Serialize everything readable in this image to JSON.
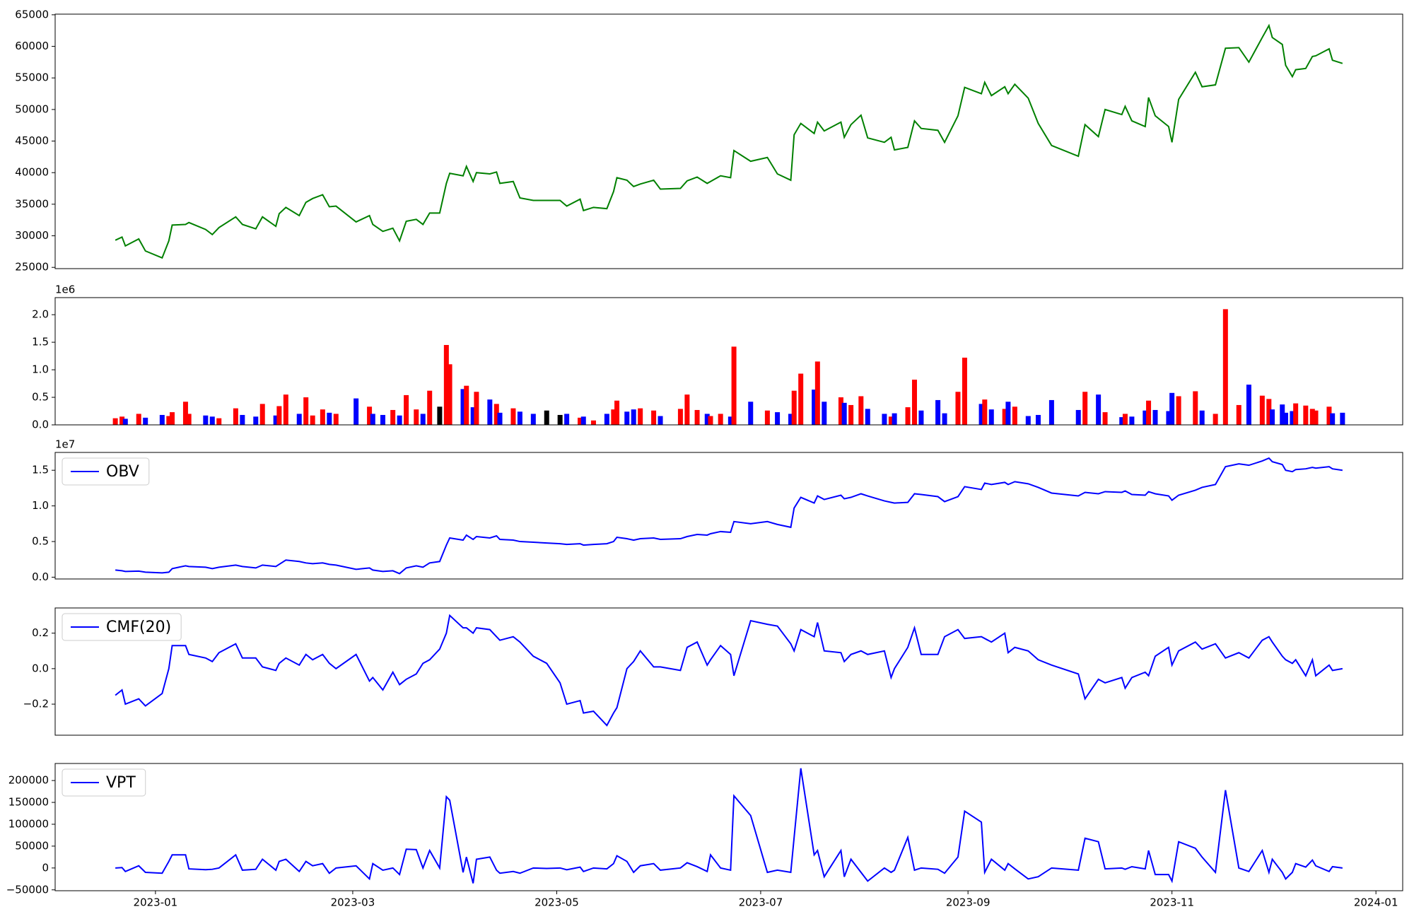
{
  "chart_data": [
    {
      "type": "line",
      "x": [
        "2022-12-20",
        "2022-12-22",
        "2022-12-23",
        "2022-12-27",
        "2022-12-29",
        "2023-01-03",
        "2023-01-05",
        "2023-01-06",
        "2023-01-10",
        "2023-01-11",
        "2023-01-16",
        "2023-01-18",
        "2023-01-20",
        "2023-01-25",
        "2023-01-27",
        "2023-01-31",
        "2023-02-02",
        "2023-02-06",
        "2023-02-07",
        "2023-02-09",
        "2023-02-13",
        "2023-02-15",
        "2023-02-17",
        "2023-02-20",
        "2023-02-22",
        "2023-02-24",
        "2023-03-02",
        "2023-03-06",
        "2023-03-07",
        "2023-03-10",
        "2023-03-13",
        "2023-03-15",
        "2023-03-17",
        "2023-03-20",
        "2023-03-22",
        "2023-03-24",
        "2023-03-27",
        "2023-03-29",
        "2023-03-30",
        "2023-04-03",
        "2023-04-04",
        "2023-04-06",
        "2023-04-07",
        "2023-04-11",
        "2023-04-13",
        "2023-04-14",
        "2023-04-18",
        "2023-04-20",
        "2023-04-24",
        "2023-04-28",
        "2023-05-02",
        "2023-05-04",
        "2023-05-08",
        "2023-05-09",
        "2023-05-12",
        "2023-05-16",
        "2023-05-18",
        "2023-05-19",
        "2023-05-22",
        "2023-05-24",
        "2023-05-26",
        "2023-05-30",
        "2023-06-01",
        "2023-06-07",
        "2023-06-09",
        "2023-06-12",
        "2023-06-15",
        "2023-06-16",
        "2023-06-19",
        "2023-06-22",
        "2023-06-23",
        "2023-06-28",
        "2023-07-03",
        "2023-07-06",
        "2023-07-10",
        "2023-07-11",
        "2023-07-13",
        "2023-07-17",
        "2023-07-18",
        "2023-07-20",
        "2023-07-25",
        "2023-07-26",
        "2023-07-28",
        "2023-07-31",
        "2023-08-02",
        "2023-08-07",
        "2023-08-09",
        "2023-08-10",
        "2023-08-14",
        "2023-08-16",
        "2023-08-18",
        "2023-08-23",
        "2023-08-25",
        "2023-08-29",
        "2023-08-31",
        "2023-09-05",
        "2023-09-06",
        "2023-09-08",
        "2023-09-12",
        "2023-09-13",
        "2023-09-15",
        "2023-09-19",
        "2023-09-22",
        "2023-09-26",
        "2023-10-04",
        "2023-10-06",
        "2023-10-10",
        "2023-10-12",
        "2023-10-17",
        "2023-10-18",
        "2023-10-20",
        "2023-10-24",
        "2023-10-25",
        "2023-10-27",
        "2023-10-31",
        "2023-11-01",
        "2023-11-03",
        "2023-11-08",
        "2023-11-10",
        "2023-11-14",
        "2023-11-17",
        "2023-11-21",
        "2023-11-24",
        "2023-11-28",
        "2023-11-30",
        "2023-12-01",
        "2023-12-04",
        "2023-12-05",
        "2023-12-07",
        "2023-12-08",
        "2023-12-11",
        "2023-12-13",
        "2023-12-14",
        "2023-12-18",
        "2023-12-19",
        "2023-12-22"
      ],
      "xlim": [
        "2022-12-02",
        "2024-01-09"
      ],
      "series": [
        {
          "color": "#008000",
          "values": [
            29300,
            29800,
            28400,
            29500,
            27600,
            26500,
            29200,
            31700,
            31800,
            32100,
            31000,
            30200,
            31300,
            33000,
            31800,
            31100,
            33000,
            31500,
            33500,
            34500,
            33200,
            35300,
            35900,
            36500,
            34600,
            34700,
            32200,
            33200,
            31800,
            30700,
            31200,
            29200,
            32300,
            32600,
            31800,
            33600,
            33600,
            38300,
            39900,
            39500,
            41000,
            38600,
            40000,
            39800,
            40100,
            38300,
            38600,
            36000,
            35600,
            35600,
            35600,
            34700,
            35800,
            34000,
            34500,
            34300,
            37000,
            39200,
            38800,
            37800,
            38200,
            38800,
            37400,
            37500,
            38700,
            39300,
            38300,
            38600,
            39500,
            39200,
            43500,
            41800,
            42400,
            39800,
            38800,
            46000,
            47800,
            46200,
            48000,
            46600,
            48000,
            45600,
            47600,
            49100,
            45500,
            44800,
            45600,
            43600,
            44000,
            48200,
            47000,
            46700,
            44800,
            49000,
            53500,
            52500,
            54300,
            52200,
            53600,
            52500,
            54000,
            51800,
            47800,
            44300,
            42600,
            47600,
            45700,
            50000,
            49200,
            50500,
            48200,
            47300,
            51900,
            49000,
            47300,
            44800,
            51600,
            55900,
            53600,
            53900,
            59700,
            59800,
            57500,
            61400,
            63300,
            61400,
            60300,
            57000,
            55200,
            56300,
            56500,
            58400,
            58500,
            59600,
            57800,
            57300
          ]
        }
      ],
      "ylim": [
        24800,
        65100
      ],
      "yticks": [
        25000,
        30000,
        35000,
        40000,
        45000,
        50000,
        55000,
        60000,
        65000
      ]
    },
    {
      "type": "bar",
      "offset_label": "1e6",
      "up_color": "red",
      "down_color": "blue",
      "flat_color": "black",
      "series": [
        {
          "values": [
            120000,
            150000,
            110000,
            200000,
            130000,
            180000,
            160000,
            230000,
            420000,
            200000,
            170000,
            150000,
            120000,
            300000,
            180000,
            150000,
            380000,
            170000,
            340000,
            550000,
            200000,
            500000,
            170000,
            280000,
            220000,
            200000,
            480000,
            330000,
            200000,
            180000,
            270000,
            170000,
            540000,
            280000,
            200000,
            620000,
            330000,
            1450000,
            1100000,
            650000,
            710000,
            320000,
            600000,
            460000,
            380000,
            220000,
            300000,
            240000,
            200000,
            260000,
            180000,
            200000,
            130000,
            150000,
            80000,
            200000,
            280000,
            440000,
            240000,
            280000,
            300000,
            260000,
            160000,
            290000,
            550000,
            270000,
            200000,
            160000,
            200000,
            150000,
            1420000,
            420000,
            260000,
            230000,
            200000,
            620000,
            930000,
            640000,
            1150000,
            420000,
            500000,
            400000,
            360000,
            520000,
            290000,
            200000,
            150000,
            210000,
            320000,
            820000,
            260000,
            450000,
            210000,
            600000,
            1220000,
            380000,
            460000,
            280000,
            290000,
            420000,
            330000,
            160000,
            180000,
            450000,
            270000,
            600000,
            550000,
            230000,
            140000,
            200000,
            150000,
            260000,
            440000,
            270000,
            250000,
            580000,
            520000,
            610000,
            260000,
            200000,
            2100000,
            360000,
            730000,
            530000,
            470000,
            280000,
            370000,
            220000,
            250000,
            390000,
            350000,
            290000,
            260000,
            330000,
            210000,
            220000
          ]
        }
      ],
      "ylim": [
        0,
        2310000
      ],
      "yticks": [
        {
          "value": 0,
          "label": "0.0"
        },
        {
          "value": 500000,
          "label": "0.5"
        },
        {
          "value": 1000000,
          "label": "1.0"
        },
        {
          "value": 1500000,
          "label": "1.5"
        },
        {
          "value": 2000000,
          "label": "2.0"
        }
      ]
    },
    {
      "type": "line",
      "offset_label": "1e7",
      "legend": "upper left",
      "series": [
        {
          "name": "OBV",
          "color": "blue",
          "values": [
            1000000,
            900000,
            800000,
            850000,
            700000,
            600000,
            700000,
            1200000,
            1600000,
            1500000,
            1400000,
            1200000,
            1400000,
            1700000,
            1500000,
            1300000,
            1700000,
            1500000,
            1800000,
            2400000,
            2200000,
            2000000,
            1900000,
            2000000,
            1800000,
            1700000,
            1100000,
            1300000,
            1000000,
            800000,
            900000,
            500000,
            1300000,
            1600000,
            1400000,
            2000000,
            2200000,
            4500000,
            5500000,
            5200000,
            5900000,
            5300000,
            5700000,
            5500000,
            5800000,
            5300000,
            5200000,
            5000000,
            4900000,
            4800000,
            4700000,
            4600000,
            4700000,
            4500000,
            4600000,
            4700000,
            5000000,
            5600000,
            5400000,
            5200000,
            5400000,
            5500000,
            5300000,
            5400000,
            5700000,
            6000000,
            5900000,
            6100000,
            6400000,
            6300000,
            7800000,
            7500000,
            7800000,
            7400000,
            7000000,
            9700000,
            11200000,
            10400000,
            11400000,
            10900000,
            11500000,
            11000000,
            11200000,
            11700000,
            11400000,
            10700000,
            10500000,
            10400000,
            10500000,
            11700000,
            11600000,
            11300000,
            10600000,
            11300000,
            12700000,
            12300000,
            13200000,
            13000000,
            13300000,
            13000000,
            13400000,
            13100000,
            12600000,
            11800000,
            11400000,
            11900000,
            11700000,
            12000000,
            11900000,
            12100000,
            11600000,
            11500000,
            12000000,
            11700000,
            11400000,
            10800000,
            11500000,
            12200000,
            12600000,
            13000000,
            15500000,
            15900000,
            15700000,
            16300000,
            16700000,
            16200000,
            15800000,
            15000000,
            14800000,
            15100000,
            15200000,
            15400000,
            15300000,
            15500000,
            15200000,
            15000000
          ]
        }
      ],
      "ylim": [
        -250000,
        17500000
      ],
      "yticks": [
        {
          "value": 0,
          "label": "0.0"
        },
        {
          "value": 5000000,
          "label": "0.5"
        },
        {
          "value": 10000000,
          "label": "1.0"
        },
        {
          "value": 15000000,
          "label": "1.5"
        }
      ]
    },
    {
      "type": "line",
      "legend": "upper left",
      "series": [
        {
          "name": "CMF(20)",
          "color": "blue",
          "values": [
            -0.15,
            -0.12,
            -0.2,
            -0.17,
            -0.21,
            -0.14,
            0.0,
            0.13,
            0.13,
            0.08,
            0.06,
            0.04,
            0.09,
            0.14,
            0.06,
            0.06,
            0.01,
            -0.01,
            0.03,
            0.06,
            0.02,
            0.08,
            0.05,
            0.08,
            0.03,
            0.0,
            0.08,
            -0.07,
            -0.05,
            -0.12,
            -0.02,
            -0.09,
            -0.06,
            -0.03,
            0.03,
            0.05,
            0.11,
            0.2,
            0.3,
            0.23,
            0.23,
            0.2,
            0.23,
            0.22,
            0.18,
            0.16,
            0.18,
            0.15,
            0.07,
            0.03,
            -0.08,
            -0.2,
            -0.18,
            -0.25,
            -0.24,
            -0.32,
            -0.25,
            -0.22,
            0.0,
            0.04,
            0.1,
            0.01,
            0.01,
            -0.01,
            0.12,
            0.15,
            0.02,
            0.05,
            0.13,
            0.08,
            -0.04,
            0.27,
            0.25,
            0.24,
            0.14,
            0.1,
            0.22,
            0.18,
            0.26,
            0.1,
            0.09,
            0.04,
            0.08,
            0.1,
            0.08,
            0.1,
            -0.05,
            0.0,
            0.12,
            0.23,
            0.08,
            0.08,
            0.18,
            0.22,
            0.17,
            0.18,
            0.17,
            0.15,
            0.2,
            0.09,
            0.12,
            0.1,
            0.05,
            0.02,
            -0.03,
            -0.17,
            -0.06,
            -0.08,
            -0.05,
            -0.11,
            -0.05,
            -0.02,
            -0.04,
            0.07,
            0.12,
            0.02,
            0.1,
            0.15,
            0.11,
            0.14,
            0.06,
            0.09,
            0.06,
            0.16,
            0.18,
            0.15,
            0.07,
            0.05,
            0.03,
            0.05,
            -0.04,
            0.05,
            -0.04,
            0.02,
            -0.01,
            0.0
          ]
        }
      ],
      "ylim": [
        -0.375,
        0.342
      ],
      "yticks": [
        {
          "value": -0.2,
          "label": "−0.2"
        },
        {
          "value": 0,
          "label": "0.0"
        },
        0.2
      ]
    },
    {
      "type": "line",
      "legend": "upper left",
      "series": [
        {
          "name": "VPT",
          "color": "blue",
          "values": [
            0,
            1000,
            -8000,
            5000,
            -10000,
            -12000,
            15000,
            30000,
            30000,
            -2000,
            -4000,
            -3000,
            0,
            30000,
            -5000,
            -3000,
            20000,
            -5000,
            15000,
            20000,
            -8000,
            15000,
            5000,
            10000,
            -12000,
            0,
            5000,
            -25000,
            10000,
            -5000,
            0,
            -15000,
            43000,
            42000,
            0,
            40000,
            0,
            163000,
            155000,
            -10000,
            25000,
            -35000,
            20000,
            25000,
            -5000,
            -12000,
            -8000,
            -12000,
            0,
            -1000,
            0,
            -4000,
            2000,
            -8000,
            0,
            -2000,
            10000,
            28000,
            15000,
            -10000,
            5000,
            10000,
            -5000,
            0,
            12000,
            3000,
            -8000,
            30000,
            0,
            -5000,
            165000,
            120000,
            -10000,
            -5000,
            -10000,
            70000,
            228000,
            30000,
            40000,
            -20000,
            40000,
            -20000,
            20000,
            -10000,
            -30000,
            0,
            -10000,
            -5000,
            70000,
            -5000,
            0,
            -3000,
            -12000,
            25000,
            130000,
            105000,
            -10000,
            20000,
            -5000,
            10000,
            -2000,
            -25000,
            -20000,
            0,
            -5000,
            68000,
            60000,
            -2000,
            0,
            -3000,
            3000,
            -2000,
            40000,
            -15000,
            -15000,
            -30000,
            60000,
            45000,
            25000,
            -10000,
            178000,
            0,
            -8000,
            40000,
            -10000,
            20000,
            -10000,
            -25000,
            -10000,
            10000,
            2000,
            18000,
            5000,
            -8000,
            3000,
            0
          ]
        }
      ],
      "ylim": [
        -52000,
        239000
      ],
      "yticks": [
        {
          "value": -50000,
          "label": "−50000"
        },
        0,
        50000,
        100000,
        150000,
        200000
      ],
      "xticks": [
        {
          "value": "2023-01-01",
          "label": "2023-01"
        },
        {
          "value": "2023-03-01",
          "label": "2023-03"
        },
        {
          "value": "2023-05-01",
          "label": "2023-05"
        },
        {
          "value": "2023-07-01",
          "label": "2023-07"
        },
        {
          "value": "2023-09-01",
          "label": "2023-09"
        },
        {
          "value": "2023-11-01",
          "label": "2023-11"
        },
        {
          "value": "2024-01-01",
          "label": "2024-01"
        }
      ]
    }
  ]
}
